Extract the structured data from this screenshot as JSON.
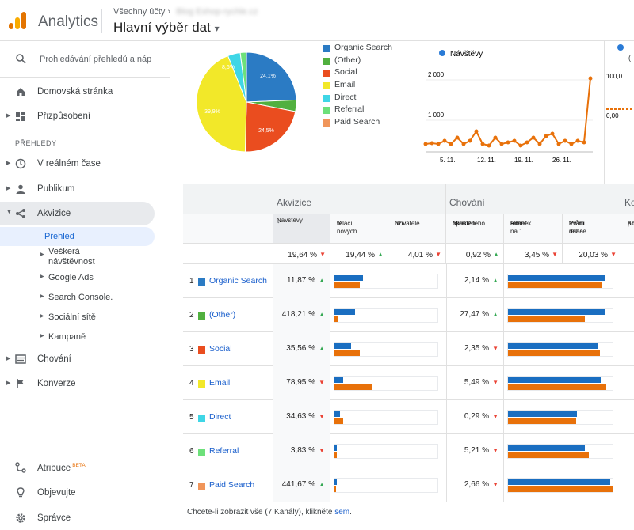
{
  "header": {
    "app_name": "Analytics",
    "account_crumb": "Všechny účty",
    "property_blur": "Blog Eshop-rychle.cz",
    "view_name": "Hlavní výběr dat",
    "dropdown_caret": "▾"
  },
  "sidebar": {
    "search_placeholder": "Prohledávání přehledů a náp",
    "home": "Domovská stránka",
    "customize": "Přizpůsobení",
    "section_reports": "PŘEHLEDY",
    "realtime": "V reálném čase",
    "audience": "Publikum",
    "acquisition": "Akvizice",
    "acq_sub": {
      "overview": "Přehled",
      "all_traffic_1": "Veškerá",
      "all_traffic_2": "návštěvnost",
      "google_ads": "Google Ads",
      "search_console": "Search Console.",
      "social": "Sociální sítě",
      "campaigns": "Kampaně"
    },
    "behavior": "Chování",
    "conversions": "Konverze",
    "attribution": "Atribuce",
    "beta": "BETA",
    "discover": "Objevujte",
    "admin": "Správce"
  },
  "pie": {
    "labels": [
      "24,1%",
      "24,5%",
      "39,9%",
      "8,6%"
    ]
  },
  "legend": [
    "Organic Search",
    "(Other)",
    "Social",
    "Email",
    "Direct",
    "Referral",
    "Paid Search"
  ],
  "line_chart": {
    "legend": "Návštěvy",
    "yticks": [
      "2 000",
      "1 000"
    ],
    "xticks": [
      "5. 11.",
      "12. 11.",
      "19. 11.",
      "26. 11."
    ]
  },
  "chart3": {
    "legend_partial": "(",
    "ytick1": "100,0",
    "ytick2": "0,00"
  },
  "table": {
    "groups": {
      "acquisition": "Akvizice",
      "behavior": "Chování",
      "conversions": "Ko"
    },
    "cols": {
      "visits": "Návštěvy",
      "new_pct_1": "% nových",
      "new_pct_2": "relací",
      "new_users_1": "Noví",
      "new_users_2": "uživatelé",
      "bounce_1": "Míra",
      "bounce_2": "okamžitého",
      "bounce_3": "opuštění",
      "pages_1": "Počet",
      "pages_2": "stránek na 1",
      "pages_3": "relaci",
      "dur_1": "Prům. doba",
      "dur_2": "trvání relace",
      "conv_1": "Kon",
      "conv_2": "poř"
    },
    "sort_arrow": "↓",
    "totals": {
      "visits": "19,64 %",
      "new_pct": "19,44 %",
      "new_users": "4,01 %",
      "bounce": "0,92 %",
      "pages": "3,45 %",
      "dur": "20,03 %"
    },
    "rows": [
      {
        "n": "1",
        "channel": "Organic Search",
        "visits": "11,87 %",
        "bounce": "2,14 %"
      },
      {
        "n": "2",
        "channel": "(Other)",
        "visits": "418,21 %",
        "bounce": "27,47 %"
      },
      {
        "n": "3",
        "channel": "Social",
        "visits": "35,56 %",
        "bounce": "2,35 %"
      },
      {
        "n": "4",
        "channel": "Email",
        "visits": "78,95 %",
        "bounce": "5,49 %"
      },
      {
        "n": "5",
        "channel": "Direct",
        "visits": "34,63 %",
        "bounce": "0,29 %"
      },
      {
        "n": "6",
        "channel": "Referral",
        "visits": "3,83 %",
        "bounce": "5,21 %"
      },
      {
        "n": "7",
        "channel": "Paid Search",
        "visits": "441,67 %",
        "bounce": "2,66 %"
      }
    ]
  },
  "footer": {
    "text": "Chcete-li zobrazit vše (7 Kanály), klikněte",
    "link": "sem",
    "period": "."
  },
  "colors": {
    "organic": "#2b7bc4",
    "other": "#51b03f",
    "social": "#ea4d1f",
    "email": "#f2e829",
    "direct": "#3fd6e6",
    "referral": "#6de07a",
    "paid": "#f0955a",
    "bar_blue": "#1a6ec1",
    "bar_orange": "#e8710a",
    "accent": "#1a73e8"
  }
}
